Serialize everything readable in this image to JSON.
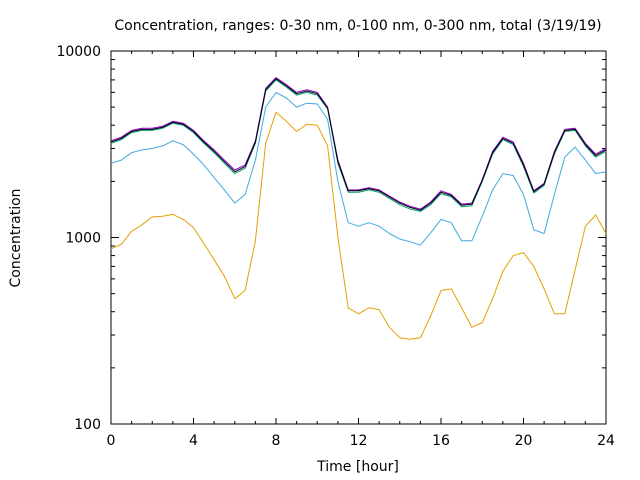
{
  "chart_data": {
    "type": "line",
    "title": "Concentration, ranges: 0-30 nm, 0-100 nm, 0-300 nm, total (3/19/19)",
    "xlabel": "Time [hour]",
    "ylabel": "Concentration",
    "xlim": [
      0,
      24
    ],
    "ylim": [
      100,
      10000
    ],
    "yscale": "log",
    "x_ticks": [
      0,
      4,
      8,
      12,
      16,
      20,
      24
    ],
    "x_tick_labels": [
      "0",
      "4",
      "8",
      "12",
      "16",
      "20",
      "24"
    ],
    "y_ticks": [
      100,
      1000,
      10000
    ],
    "y_tick_labels": [
      "100",
      "1000",
      "10000"
    ],
    "grid": false,
    "legend": "none",
    "x": [
      0,
      0.5,
      1,
      1.5,
      2,
      2.5,
      3,
      3.5,
      4,
      4.5,
      5,
      5.5,
      6,
      6.5,
      7,
      7.5,
      8,
      8.5,
      9,
      9.5,
      10,
      10.5,
      11,
      11.5,
      12,
      12.5,
      13,
      13.5,
      14,
      14.5,
      15,
      15.5,
      16,
      16.5,
      17,
      17.5,
      18,
      18.5,
      19,
      19.5,
      20,
      20.5,
      21,
      21.5,
      22,
      22.5,
      23,
      23.5,
      24
    ],
    "series": [
      {
        "color": "#e6a000",
        "values": [
          870,
          920,
          1080,
          1170,
          1290,
          1300,
          1330,
          1250,
          1130,
          930,
          760,
          620,
          470,
          520,
          960,
          3200,
          4700,
          4200,
          3700,
          4050,
          4000,
          3100,
          1000,
          420,
          390,
          420,
          410,
          330,
          290,
          285,
          290,
          380,
          520,
          530,
          420,
          330,
          350,
          470,
          660,
          800,
          830,
          700,
          530,
          390,
          390,
          670,
          1150,
          1320,
          1050
        ]
      },
      {
        "color": "#3fa9e0",
        "values": [
          2500,
          2600,
          2850,
          2950,
          3000,
          3100,
          3300,
          3150,
          2800,
          2450,
          2100,
          1800,
          1530,
          1700,
          2600,
          5000,
          6000,
          5600,
          5000,
          5250,
          5200,
          4300,
          2000,
          1200,
          1150,
          1200,
          1150,
          1050,
          980,
          950,
          910,
          1060,
          1250,
          1200,
          960,
          960,
          1300,
          1800,
          2200,
          2150,
          1700,
          1100,
          1050,
          1700,
          2700,
          3050,
          2600,
          2200,
          2250
        ]
      },
      {
        "color": "#009e73",
        "values": [
          3200,
          3350,
          3650,
          3750,
          3750,
          3850,
          4100,
          4000,
          3650,
          3200,
          2850,
          2500,
          2200,
          2350,
          3200,
          6100,
          7000,
          6400,
          5800,
          6000,
          5800,
          4900,
          2500,
          1750,
          1750,
          1800,
          1750,
          1620,
          1500,
          1420,
          1380,
          1500,
          1720,
          1650,
          1460,
          1480,
          2000,
          2800,
          3350,
          3150,
          2400,
          1730,
          1900,
          2800,
          3700,
          3750,
          3100,
          2700,
          2900
        ]
      },
      {
        "color": "#9400d3",
        "values": [
          3300,
          3450,
          3750,
          3850,
          3850,
          3950,
          4200,
          4100,
          3750,
          3300,
          2950,
          2600,
          2300,
          2450,
          3300,
          6300,
          7200,
          6600,
          6000,
          6200,
          6000,
          5000,
          2600,
          1800,
          1800,
          1850,
          1800,
          1670,
          1550,
          1470,
          1420,
          1550,
          1780,
          1700,
          1510,
          1530,
          2050,
          2900,
          3450,
          3250,
          2500,
          1780,
          1950,
          2900,
          3800,
          3850,
          3200,
          2800,
          3000
        ]
      },
      {
        "color": "#000000",
        "values": [
          3250,
          3400,
          3700,
          3800,
          3800,
          3900,
          4150,
          4050,
          3700,
          3250,
          2900,
          2550,
          2250,
          2400,
          3250,
          6200,
          7100,
          6500,
          5900,
          6100,
          5900,
          4950,
          2550,
          1780,
          1780,
          1830,
          1780,
          1650,
          1530,
          1450,
          1400,
          1530,
          1750,
          1680,
          1490,
          1510,
          2030,
          2850,
          3400,
          3200,
          2450,
          1760,
          1930,
          2850,
          3750,
          3800,
          3150,
          2750,
          2950
        ]
      }
    ]
  }
}
